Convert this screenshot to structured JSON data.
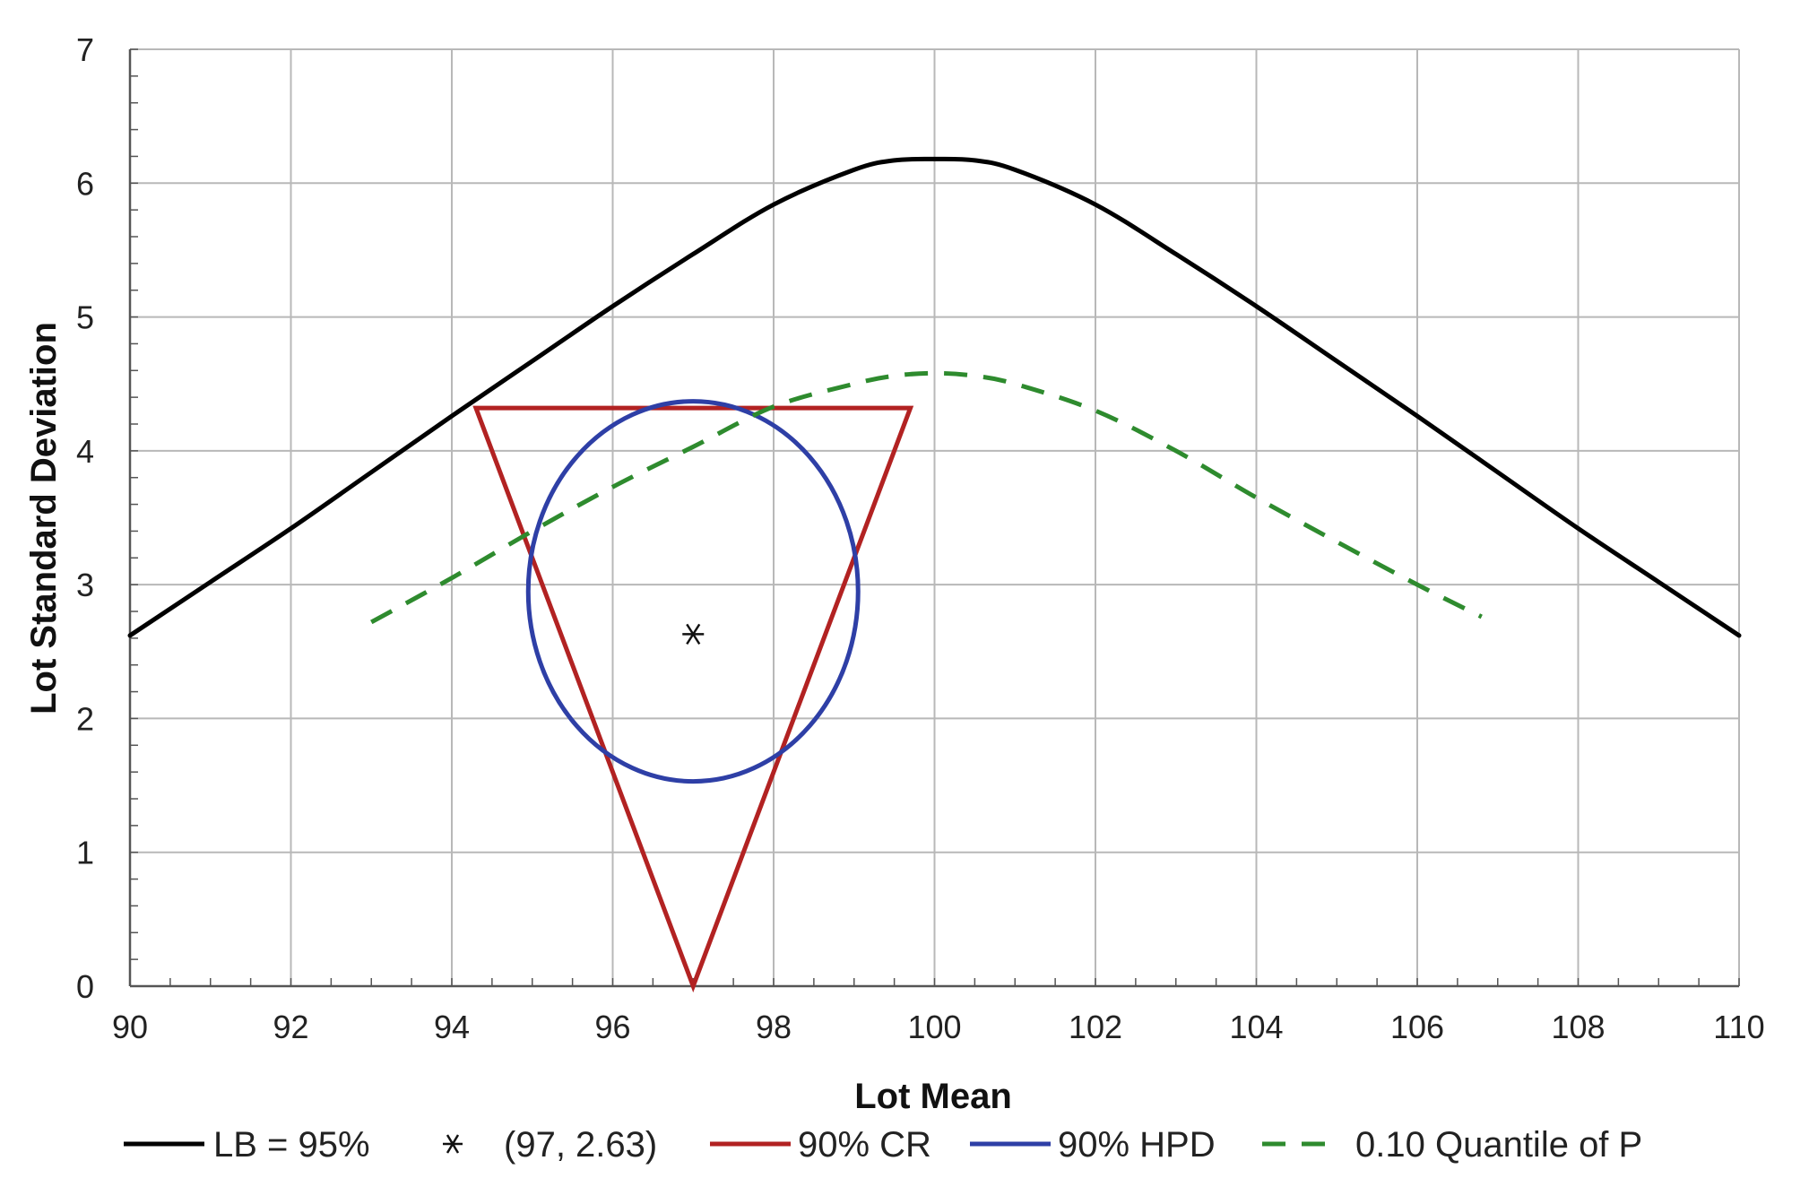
{
  "chart_data": {
    "type": "line",
    "title": "",
    "xlabel": "Lot Mean",
    "ylabel": "Lot Standard Deviation",
    "xlim": [
      90,
      110
    ],
    "ylim": [
      0,
      7
    ],
    "x_ticks": [
      90,
      92,
      94,
      96,
      98,
      100,
      102,
      104,
      106,
      108,
      110
    ],
    "y_ticks": [
      0,
      1,
      2,
      3,
      4,
      5,
      6,
      7
    ],
    "x_tick_labels": [
      "90",
      "92",
      "94",
      "96",
      "98",
      "100",
      "102",
      "104",
      "106",
      "108",
      "110"
    ],
    "y_tick_labels": [
      "0",
      "1",
      "2",
      "3",
      "4",
      "5",
      "6",
      "7"
    ],
    "grid": true,
    "legend_position": "bottom",
    "series": [
      {
        "name": "LB = 95%",
        "style": "solid",
        "color": "#000000",
        "points": [
          [
            90,
            2.62
          ],
          [
            91,
            3.02
          ],
          [
            92,
            3.42
          ],
          [
            93,
            3.84
          ],
          [
            94,
            4.26
          ],
          [
            95,
            4.67
          ],
          [
            96,
            5.08
          ],
          [
            97,
            5.47
          ],
          [
            98,
            5.84
          ],
          [
            99,
            6.1
          ],
          [
            99.5,
            6.17
          ],
          [
            100,
            6.18
          ],
          [
            100.5,
            6.17
          ],
          [
            101,
            6.1
          ],
          [
            102,
            5.84
          ],
          [
            103,
            5.47
          ],
          [
            104,
            5.08
          ],
          [
            105,
            4.67
          ],
          [
            106,
            4.26
          ],
          [
            107,
            3.84
          ],
          [
            108,
            3.42
          ],
          [
            109,
            3.02
          ],
          [
            110,
            2.62
          ]
        ]
      },
      {
        "name": "(97, 2.63)",
        "style": "marker",
        "color": "#111111",
        "points": [
          [
            97,
            2.63
          ]
        ]
      },
      {
        "name": "90% CR",
        "style": "solid",
        "color": "#b22222",
        "points": [
          [
            94.3,
            4.32
          ],
          [
            99.7,
            4.32
          ],
          [
            97,
            0
          ],
          [
            94.3,
            4.32
          ]
        ]
      },
      {
        "name": "90% HPD",
        "style": "ellipse",
        "color": "#2e3fa6",
        "center": [
          97,
          2.95
        ],
        "radius_x": 2.05,
        "radius_y": 1.42
      },
      {
        "name": "0.10 Quantile of P",
        "style": "dashed",
        "color": "#2e8b2e",
        "points": [
          [
            93,
            2.72
          ],
          [
            94,
            3.05
          ],
          [
            95,
            3.4
          ],
          [
            96,
            3.73
          ],
          [
            97,
            4.03
          ],
          [
            98,
            4.33
          ],
          [
            99,
            4.5
          ],
          [
            99.5,
            4.56
          ],
          [
            100,
            4.58
          ],
          [
            100.5,
            4.56
          ],
          [
            101,
            4.5
          ],
          [
            102,
            4.3
          ],
          [
            103,
            4.0
          ],
          [
            104,
            3.65
          ],
          [
            105,
            3.32
          ],
          [
            106,
            3.0
          ],
          [
            106.8,
            2.76
          ]
        ]
      }
    ]
  },
  "colors": {
    "lb": "#000000",
    "cr": "#b22222",
    "hpd": "#2e3fa6",
    "quantile": "#2e8b2e",
    "grid": "#b8b8b8",
    "axis": "#555555"
  }
}
